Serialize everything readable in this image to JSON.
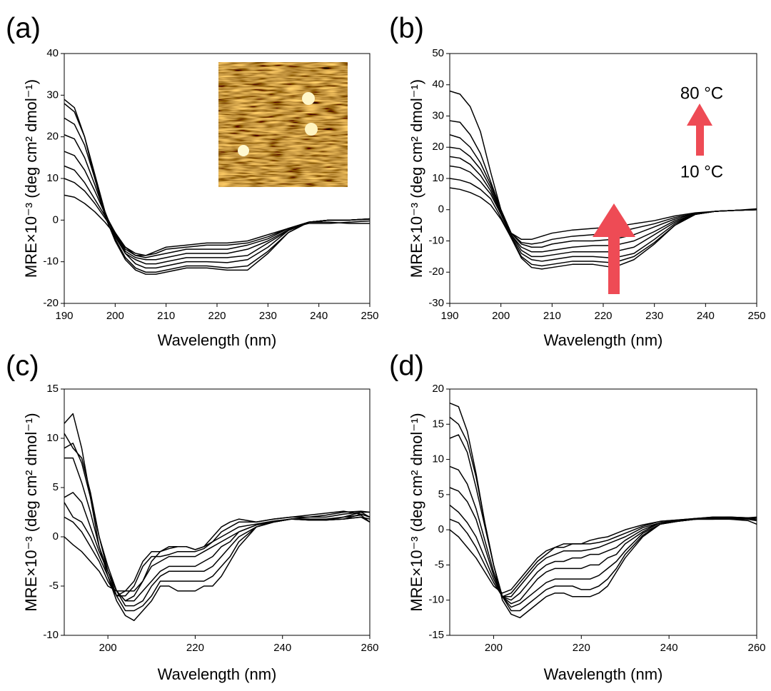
{
  "chart_data": [
    {
      "type": "line",
      "panel_label": "(a)",
      "xlabel": "Wavelength (nm)",
      "ylabel": "MRE×10⁻³ (deg cm² dmol⁻¹)",
      "xlim": [
        190,
        250
      ],
      "xticks": [
        190,
        200,
        210,
        220,
        230,
        240,
        250
      ],
      "ylim": [
        -20,
        40
      ],
      "yticks": [
        -20,
        -10,
        0,
        10,
        20,
        30,
        40
      ],
      "x": [
        190,
        192,
        194,
        196,
        198,
        200,
        202,
        204,
        206,
        208,
        210,
        214,
        218,
        222,
        226,
        230,
        234,
        238,
        242,
        246,
        250
      ],
      "series": [
        {
          "color": "#000000",
          "values": [
            29,
            27,
            20,
            10,
            1,
            -5,
            -9.5,
            -12,
            -13,
            -13,
            -12.5,
            -11.5,
            -11.5,
            -12,
            -12,
            -8,
            -3,
            -0.5,
            0,
            0,
            0.3
          ]
        },
        {
          "color": "#000000",
          "values": [
            28,
            26,
            20,
            11,
            2,
            -4.5,
            -9,
            -11.5,
            -12.5,
            -12.5,
            -12,
            -11,
            -11,
            -11.5,
            -11,
            -7.5,
            -3,
            -0.5,
            0,
            0,
            0.3
          ]
        },
        {
          "color": "#000000",
          "values": [
            24.5,
            23,
            18,
            10,
            2,
            -4,
            -8,
            -10.5,
            -11.5,
            -11.5,
            -11,
            -10,
            -10,
            -10.2,
            -9.5,
            -6.5,
            -2.5,
            -0.5,
            0,
            0,
            0.3
          ]
        },
        {
          "color": "#000000",
          "values": [
            20.5,
            19.5,
            15,
            8.5,
            1.5,
            -3.5,
            -8,
            -9.5,
            -10.5,
            -10.5,
            -10,
            -9,
            -9,
            -9,
            -8.5,
            -5.5,
            -2.5,
            -0.5,
            0,
            0,
            0.3
          ]
        },
        {
          "color": "#000000",
          "values": [
            16.5,
            15.5,
            12,
            7,
            1.5,
            -3,
            -7.5,
            -9,
            -9.5,
            -9.5,
            -9,
            -8,
            -8,
            -8,
            -7,
            -5,
            -2.3,
            -0.5,
            0,
            0,
            0.3
          ]
        },
        {
          "color": "#000000",
          "values": [
            13,
            12,
            9,
            5,
            1,
            -3,
            -7,
            -8.5,
            -9,
            -8.5,
            -8,
            -7,
            -7,
            -7,
            -6,
            -4.5,
            -2,
            -0.5,
            0,
            0,
            0.2
          ]
        },
        {
          "color": "#000000",
          "values": [
            10,
            9,
            7,
            4,
            0.5,
            -3,
            -6.5,
            -8,
            -8.5,
            -8,
            -7,
            -6.5,
            -6,
            -6,
            -5.5,
            -4,
            -2,
            -0.5,
            -0.5,
            -0.8,
            -0.8
          ]
        },
        {
          "color": "#000000",
          "values": [
            6,
            5.5,
            4,
            2,
            -0.5,
            -3.5,
            -6.5,
            -8.5,
            -8.5,
            -7.5,
            -6.5,
            -6,
            -5.5,
            -5.5,
            -5,
            -3.5,
            -2,
            -0.8,
            -0.8,
            -0.5,
            -0.2
          ]
        }
      ]
    },
    {
      "type": "line",
      "panel_label": "(b)",
      "xlabel": "Wavelength (nm)",
      "ylabel": "MRE×10⁻³ (deg cm² dmol⁻¹)",
      "annotations": [
        "80 °C",
        "10 °C"
      ],
      "xlim": [
        190,
        250
      ],
      "xticks": [
        190,
        200,
        210,
        220,
        230,
        240,
        250
      ],
      "ylim": [
        -30,
        50
      ],
      "yticks": [
        -30,
        -20,
        -10,
        0,
        10,
        20,
        30,
        40,
        50
      ],
      "x": [
        190,
        192,
        194,
        196,
        198,
        200,
        202,
        204,
        206,
        208,
        210,
        214,
        218,
        222,
        226,
        230,
        234,
        238,
        242,
        246,
        250
      ],
      "series": [
        {
          "color": "#000000",
          "values": [
            38,
            37,
            33,
            25,
            12,
            0,
            -7.5,
            -9.5,
            -9.5,
            -8.5,
            -7.5,
            -6.5,
            -6,
            -5.5,
            -4.5,
            -3.5,
            -2,
            -1,
            -0.5,
            -0.2,
            0
          ]
        },
        {
          "color": "#000000",
          "values": [
            28.5,
            28,
            24,
            18,
            9,
            0,
            -7.5,
            -10.5,
            -11,
            -10.5,
            -9.5,
            -8.5,
            -8,
            -7.5,
            -6,
            -4.5,
            -2.5,
            -1.2,
            -0.5,
            -0.2,
            0
          ]
        },
        {
          "color": "#000000",
          "values": [
            24,
            23,
            20,
            15,
            8,
            0,
            -7.5,
            -11,
            -12,
            -12,
            -11,
            -10,
            -10,
            -9.5,
            -8,
            -5.5,
            -3,
            -1.3,
            -0.5,
            -0.2,
            0
          ]
        },
        {
          "color": "#000000",
          "values": [
            20,
            19.5,
            17,
            13,
            7,
            -0.5,
            -8,
            -12,
            -13.5,
            -13.5,
            -13,
            -12,
            -11.5,
            -11.5,
            -10,
            -7,
            -3.5,
            -1.5,
            -0.5,
            -0.2,
            0
          ]
        },
        {
          "color": "#000000",
          "values": [
            17,
            16.5,
            14.5,
            11,
            6,
            -1,
            -8,
            -13,
            -15,
            -15,
            -14.5,
            -13.5,
            -13.5,
            -13.5,
            -12,
            -8,
            -4,
            -1.5,
            -0.5,
            -0.2,
            0
          ]
        },
        {
          "color": "#000000",
          "values": [
            14,
            13.5,
            12,
            9,
            5,
            -1.5,
            -8.5,
            -14,
            -16,
            -16.5,
            -16,
            -15,
            -15,
            -15.5,
            -14,
            -9.5,
            -4.5,
            -1.5,
            -0.5,
            -0.2,
            0
          ]
        },
        {
          "color": "#000000",
          "values": [
            10,
            9.5,
            8.5,
            6.5,
            3.5,
            -2.5,
            -9,
            -15,
            -17.5,
            -18,
            -17.5,
            -16.5,
            -16.5,
            -17,
            -15,
            -10.5,
            -5,
            -1.5,
            -0.5,
            -0.2,
            0
          ]
        },
        {
          "color": "#000000",
          "values": [
            7,
            6.5,
            5.5,
            4,
            1.5,
            -3,
            -9,
            -15.5,
            -18.5,
            -19,
            -18.5,
            -17.5,
            -17.5,
            -18.5,
            -16,
            -11,
            -5,
            -1.5,
            -0.5,
            -0.2,
            0.3
          ]
        }
      ]
    },
    {
      "type": "line",
      "panel_label": "(c)",
      "xlabel": "Wavelength (nm)",
      "ylabel": "MRE×10⁻³ (deg cm² dmol⁻¹)",
      "xlim": [
        190,
        260
      ],
      "xticks": [
        200,
        220,
        240,
        260
      ],
      "ylim": [
        -10,
        15
      ],
      "yticks": [
        -10,
        -5,
        0,
        5,
        10,
        15
      ],
      "x": [
        190,
        192,
        194,
        196,
        198,
        200,
        202,
        204,
        206,
        208,
        210,
        212,
        214,
        216,
        218,
        220,
        222,
        224,
        226,
        228,
        230,
        234,
        238,
        242,
        246,
        250,
        254,
        258,
        260
      ],
      "series": [
        {
          "color": "#000000",
          "values": [
            11.5,
            12.5,
            9,
            4,
            -1,
            -4,
            -6.5,
            -8,
            -8.5,
            -7.5,
            -6.5,
            -5,
            -5,
            -5.5,
            -5.5,
            -5.5,
            -5,
            -5,
            -4,
            -2.5,
            -1,
            1,
            1.5,
            1.8,
            1.7,
            1.7,
            1.8,
            2,
            1.5
          ]
        },
        {
          "color": "#000000",
          "values": [
            10.5,
            9,
            8,
            4.5,
            0,
            -3.5,
            -6,
            -7.5,
            -7.5,
            -7,
            -6,
            -4.5,
            -4.5,
            -4.5,
            -4.5,
            -4.5,
            -4.5,
            -4,
            -3,
            -2,
            -0.5,
            1,
            1.5,
            1.8,
            1.7,
            1.7,
            2,
            2.2,
            1.5
          ]
        },
        {
          "color": "#000000",
          "values": [
            9,
            9.5,
            7.5,
            4,
            0,
            -3,
            -5.5,
            -7,
            -7,
            -6.5,
            -5,
            -4,
            -3.5,
            -3.5,
            -3.5,
            -3.5,
            -3.5,
            -3,
            -2,
            -1,
            0,
            1,
            1.5,
            1.8,
            1.7,
            1.7,
            1.8,
            2,
            1.8
          ]
        },
        {
          "color": "#000000",
          "values": [
            8,
            8,
            5.5,
            2.5,
            -1,
            -3.5,
            -5.5,
            -6.5,
            -6.5,
            -5.5,
            -4.5,
            -3.5,
            -3,
            -3,
            -3,
            -3,
            -2.5,
            -2,
            -1,
            -0.5,
            0.5,
            1.2,
            1.5,
            1.8,
            1.8,
            1.7,
            1.8,
            2.3,
            2
          ]
        },
        {
          "color": "#000000",
          "values": [
            4,
            4.5,
            3.5,
            1,
            -1.5,
            -3.5,
            -5.5,
            -6.5,
            -6,
            -4.5,
            -3,
            -2.5,
            -2,
            -2,
            -2,
            -2,
            -1.5,
            -1,
            -0.5,
            0,
            0.5,
            1.2,
            1.5,
            1.8,
            1.8,
            1.8,
            2,
            2.5,
            2.5
          ]
        },
        {
          "color": "#000000",
          "values": [
            3.5,
            2,
            1.5,
            0,
            -2,
            -4,
            -6,
            -6,
            -5,
            -3,
            -2,
            -2,
            -1.8,
            -1.5,
            -1.5,
            -1.5,
            -1.2,
            -0.5,
            0,
            0.5,
            1,
            1.3,
            1.6,
            1.8,
            2,
            2,
            2.3,
            2.5,
            2
          ]
        },
        {
          "color": "#000000",
          "values": [
            2,
            1.5,
            0.5,
            -1,
            -2.5,
            -4.5,
            -6,
            -5.5,
            -4.5,
            -2.5,
            -1.5,
            -1.5,
            -1.2,
            -1,
            -1,
            -1.3,
            -1,
            -0.5,
            0.5,
            1,
            1.5,
            1.5,
            1.8,
            2,
            2,
            2.2,
            2.5,
            2.6,
            2.5
          ]
        },
        {
          "color": "#000000",
          "values": [
            0,
            -0.8,
            -1.5,
            -2.5,
            -3.5,
            -5,
            -5.5,
            -5.5,
            -5.5,
            -4.5,
            -2.5,
            -1.5,
            -1,
            -1,
            -1,
            -1.3,
            -1,
            0,
            1,
            1.5,
            1.8,
            1.5,
            1.8,
            2,
            2.2,
            2.4,
            2.6,
            2.3,
            2
          ]
        }
      ]
    },
    {
      "type": "line",
      "panel_label": "(d)",
      "xlabel": "Wavelength (nm)",
      "ylabel": "MRE×10⁻³ (deg cm² dmol⁻¹)",
      "xlim": [
        190,
        260
      ],
      "xticks": [
        200,
        220,
        240,
        260
      ],
      "ylim": [
        -15,
        20
      ],
      "yticks": [
        -15,
        -10,
        -5,
        0,
        5,
        10,
        15,
        20
      ],
      "x": [
        190,
        192,
        194,
        196,
        198,
        200,
        202,
        204,
        206,
        208,
        210,
        212,
        214,
        216,
        218,
        220,
        222,
        224,
        226,
        228,
        230,
        234,
        238,
        242,
        246,
        250,
        254,
        258,
        260
      ],
      "series": [
        {
          "color": "#000000",
          "values": [
            18,
            17.5,
            14,
            8,
            1,
            -5,
            -10,
            -12,
            -12.5,
            -11.5,
            -10.5,
            -9.5,
            -9,
            -9,
            -9.5,
            -9.5,
            -9.5,
            -9,
            -8,
            -6,
            -4,
            -1,
            0.8,
            1.2,
            1.5,
            1.5,
            1.5,
            1.5,
            1.3
          ]
        },
        {
          "color": "#000000",
          "values": [
            16,
            15,
            12.5,
            7.5,
            1,
            -5,
            -9.5,
            -11.5,
            -11.5,
            -10.5,
            -9.5,
            -8.5,
            -8,
            -8,
            -8,
            -8.5,
            -8.5,
            -8,
            -7,
            -5.5,
            -3.5,
            -0.8,
            0.8,
            1.2,
            1.5,
            1.5,
            1.6,
            1.5,
            1.3
          ]
        },
        {
          "color": "#000000",
          "values": [
            13,
            13.5,
            11,
            6,
            0.5,
            -5,
            -9.5,
            -11,
            -10.5,
            -9.5,
            -8.5,
            -7.5,
            -7,
            -7,
            -7,
            -7,
            -7,
            -6.5,
            -5.5,
            -4.5,
            -3,
            -0.5,
            0.8,
            1.2,
            1.5,
            1.6,
            1.6,
            1.5,
            1.5
          ]
        },
        {
          "color": "#000000",
          "values": [
            9,
            8.5,
            6.5,
            3,
            -1.5,
            -6,
            -9.5,
            -10.5,
            -10,
            -8.5,
            -7,
            -6,
            -5.5,
            -5.5,
            -5.5,
            -5.5,
            -5,
            -5,
            -4,
            -3.5,
            -2,
            -0.3,
            1,
            1.2,
            1.5,
            1.6,
            1.7,
            1.6,
            1.5
          ]
        },
        {
          "color": "#000000",
          "values": [
            6,
            5.5,
            4,
            1.5,
            -2.5,
            -6.5,
            -9.5,
            -10,
            -9,
            -7.5,
            -6,
            -5,
            -4.5,
            -4.5,
            -4,
            -4,
            -3.5,
            -3.5,
            -3,
            -2.5,
            -1.5,
            0,
            1,
            1.3,
            1.5,
            1.7,
            1.8,
            1.7,
            1.5
          ]
        },
        {
          "color": "#000000",
          "values": [
            3.5,
            2.5,
            1,
            -1,
            -4,
            -7,
            -9.5,
            -9.5,
            -8,
            -6.5,
            -5,
            -4,
            -3.5,
            -3,
            -3,
            -3,
            -2.8,
            -2.5,
            -2,
            -1.5,
            -1,
            0.3,
            1,
            1.3,
            1.6,
            1.8,
            1.8,
            1.6,
            1.7
          ]
        },
        {
          "color": "#000000",
          "values": [
            1.5,
            1,
            -0.5,
            -2.5,
            -5,
            -7.5,
            -9.5,
            -9,
            -7.5,
            -6,
            -4.5,
            -3.5,
            -2.5,
            -2.5,
            -2,
            -2,
            -2,
            -1.8,
            -1.5,
            -1,
            -0.5,
            0.5,
            1.2,
            1.4,
            1.6,
            1.8,
            1.8,
            1.7,
            1.8
          ]
        },
        {
          "color": "#000000",
          "values": [
            0,
            -1,
            -2.5,
            -4,
            -6,
            -8,
            -9,
            -8.5,
            -7,
            -5.5,
            -4,
            -3,
            -2.5,
            -2,
            -2,
            -2,
            -1.5,
            -1.2,
            -1,
            -0.5,
            0,
            0.7,
            1.2,
            1.4,
            1.6,
            1.7,
            1.5,
            1.3,
            0.8
          ]
        }
      ]
    }
  ]
}
